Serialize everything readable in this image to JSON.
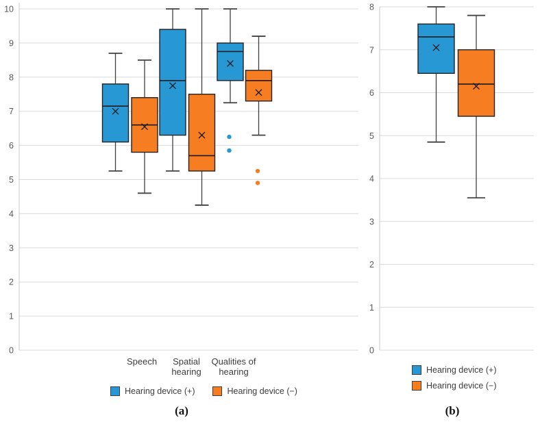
{
  "figure": {
    "panel_a_caption": "(a)",
    "panel_b_caption": "(b)"
  },
  "legend": {
    "positive": "Hearing device (+)",
    "negative": "Hearing device (−)"
  },
  "colors": {
    "positive": "#2798D4",
    "negative": "#F67D22",
    "box_border": "#222222",
    "median_line": "#1a1a1a",
    "mean_marker": "#1a1a1a",
    "whisker": "#404040",
    "gridline": "#d9d9d9",
    "axis_line": "#c9c9c9",
    "tick_label": "#595959",
    "text": "#3d3d3d"
  },
  "chart_data": [
    {
      "type": "box",
      "title": "(a)",
      "categories": [
        "Speech",
        "Spatial hearing",
        "Qualities of hearing"
      ],
      "ylim": [
        0,
        10
      ],
      "yticks": [
        0,
        1,
        2,
        3,
        4,
        5,
        6,
        7,
        8,
        9,
        10
      ],
      "grid": true,
      "legend_position": "bottom-horizontal",
      "series": [
        {
          "name": "Hearing device (+)",
          "color": "#2798D4",
          "boxes": [
            {
              "category": "Speech",
              "min": 5.25,
              "q1": 6.1,
              "median": 7.15,
              "q3": 7.8,
              "max": 8.7,
              "mean": 7.0,
              "outliers": []
            },
            {
              "category": "Spatial hearing",
              "min": 5.25,
              "q1": 6.3,
              "median": 7.9,
              "q3": 9.4,
              "max": 10.0,
              "mean": 7.75,
              "outliers": []
            },
            {
              "category": "Qualities of hearing",
              "min": 7.25,
              "q1": 7.9,
              "median": 8.75,
              "q3": 9.0,
              "max": 10.0,
              "mean": 8.4,
              "outliers": [
                6.25,
                5.85
              ]
            }
          ]
        },
        {
          "name": "Hearing device (−)",
          "color": "#F67D22",
          "boxes": [
            {
              "category": "Speech",
              "min": 4.6,
              "q1": 5.8,
              "median": 6.6,
              "q3": 7.4,
              "max": 8.5,
              "mean": 6.55,
              "outliers": []
            },
            {
              "category": "Spatial hearing",
              "min": 4.25,
              "q1": 5.25,
              "median": 5.7,
              "q3": 7.5,
              "max": 10.0,
              "mean": 6.3,
              "outliers": []
            },
            {
              "category": "Qualities of hearing",
              "min": 6.3,
              "q1": 7.3,
              "median": 7.9,
              "q3": 8.2,
              "max": 9.2,
              "mean": 7.55,
              "outliers": [
                5.25,
                4.9
              ]
            }
          ]
        }
      ]
    },
    {
      "type": "box",
      "title": "(b)",
      "categories": [
        ""
      ],
      "ylim": [
        0,
        8
      ],
      "yticks": [
        0,
        1,
        2,
        3,
        4,
        5,
        6,
        7,
        8
      ],
      "grid": true,
      "legend_position": "bottom-stacked",
      "series": [
        {
          "name": "Hearing device (+)",
          "color": "#2798D4",
          "boxes": [
            {
              "category": "",
              "min": 4.85,
              "q1": 6.45,
              "median": 7.3,
              "q3": 7.6,
              "max": 8.0,
              "mean": 7.05,
              "outliers": []
            }
          ]
        },
        {
          "name": "Hearing device (−)",
          "color": "#F67D22",
          "boxes": [
            {
              "category": "",
              "min": 3.55,
              "q1": 5.45,
              "median": 6.2,
              "q3": 7.0,
              "max": 7.8,
              "mean": 6.15,
              "outliers": []
            }
          ]
        }
      ]
    }
  ]
}
